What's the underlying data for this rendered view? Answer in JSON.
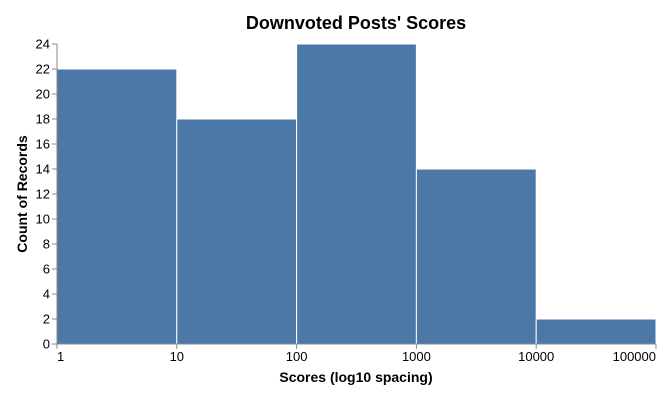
{
  "chart_data": {
    "type": "bar",
    "title": "Downvoted Posts' Scores",
    "xlabel": "Scores (log10 spacing)",
    "ylabel": "Count of Records",
    "x_scale": "log10",
    "xlim": [
      1,
      100000
    ],
    "ylim": [
      0,
      24
    ],
    "x_ticks": [
      "1",
      "10",
      "100",
      "1000",
      "10000",
      "100000"
    ],
    "y_ticks": [
      0,
      2,
      4,
      6,
      8,
      10,
      12,
      14,
      16,
      18,
      20,
      22,
      24
    ],
    "bins": [
      {
        "x_start": 1,
        "x_end": 10,
        "value": 22
      },
      {
        "x_start": 10,
        "x_end": 100,
        "value": 18
      },
      {
        "x_start": 100,
        "x_end": 1000,
        "value": 24
      },
      {
        "x_start": 1000,
        "x_end": 10000,
        "value": 14
      },
      {
        "x_start": 10000,
        "x_end": 100000,
        "value": 2
      }
    ],
    "bar_color": "#4c78a8",
    "grid": false,
    "legend": "none"
  }
}
